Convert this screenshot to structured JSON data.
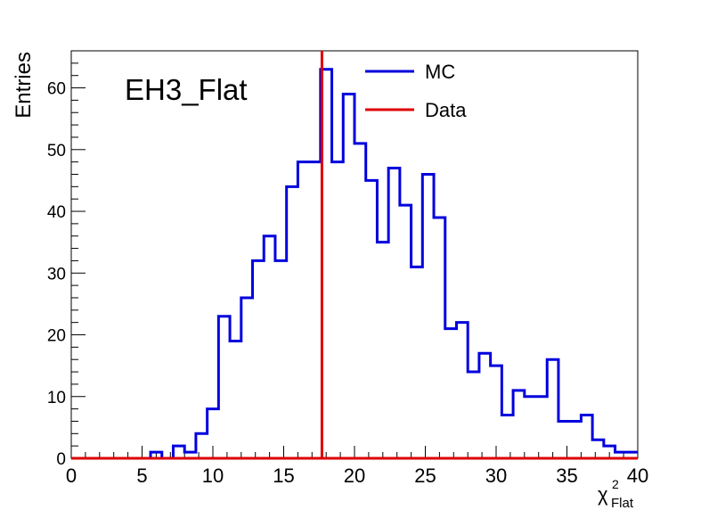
{
  "chart_data": {
    "type": "histogram",
    "annotation": "EH3_Flat",
    "ylabel": "Entries",
    "xlabel_main": "χ",
    "xlabel_sup": "2",
    "xlabel_sub": "Flat",
    "xlim": [
      0,
      40
    ],
    "ylim": [
      0,
      66
    ],
    "x_ticks": [
      0,
      5,
      10,
      15,
      20,
      25,
      30,
      35,
      40
    ],
    "y_ticks": [
      0,
      10,
      20,
      30,
      40,
      50,
      60
    ],
    "bin_width": 0.8,
    "grid": false,
    "legend_position": "top-center",
    "series": [
      {
        "name": "MC",
        "color": "#0000dd",
        "bin_start": 0,
        "values": [
          0,
          0,
          0,
          0,
          0,
          0,
          0,
          1,
          0,
          2,
          1,
          4,
          8,
          23,
          19,
          26,
          32,
          36,
          32,
          44,
          48,
          48,
          63,
          48,
          59,
          51,
          45,
          35,
          47,
          41,
          31,
          46,
          39,
          21,
          22,
          14,
          17,
          15,
          7,
          11,
          10,
          10,
          16,
          6,
          6,
          7,
          3,
          2,
          1,
          1
        ]
      },
      {
        "name": "Data",
        "color": "#dd0000",
        "x": 17.7
      }
    ]
  }
}
